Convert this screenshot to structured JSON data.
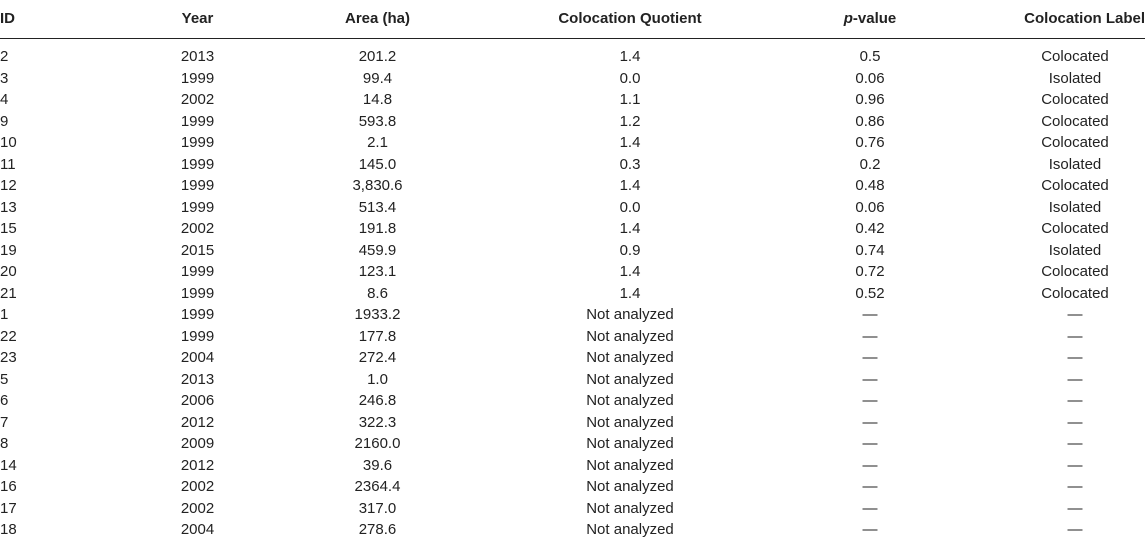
{
  "table": {
    "headers": {
      "id": "ID",
      "year": "Year",
      "area": "Area (ha)",
      "cq": "Colocation Quotient",
      "pvalue_italic": "p",
      "pvalue_rest": "-value",
      "label": "Colocation Label"
    },
    "rows": [
      {
        "id": "2",
        "year": "2013",
        "area": "201.2",
        "cq": "1.4",
        "p": "0.5",
        "label": "Colocated"
      },
      {
        "id": "3",
        "year": "1999",
        "area": "99.4",
        "cq": "0.0",
        "p": "0.06",
        "label": "Isolated"
      },
      {
        "id": "4",
        "year": "2002",
        "area": "14.8",
        "cq": "1.1",
        "p": "0.96",
        "label": "Colocated"
      },
      {
        "id": "9",
        "year": "1999",
        "area": "593.8",
        "cq": "1.2",
        "p": "0.86",
        "label": "Colocated"
      },
      {
        "id": "10",
        "year": "1999",
        "area": "2.1",
        "cq": "1.4",
        "p": "0.76",
        "label": "Colocated"
      },
      {
        "id": "11",
        "year": "1999",
        "area": "145.0",
        "cq": "0.3",
        "p": "0.2",
        "label": "Isolated"
      },
      {
        "id": "12",
        "year": "1999",
        "area": "3,830.6",
        "cq": "1.4",
        "p": "0.48",
        "label": "Colocated"
      },
      {
        "id": "13",
        "year": "1999",
        "area": "513.4",
        "cq": "0.0",
        "p": "0.06",
        "label": "Isolated"
      },
      {
        "id": "15",
        "year": "2002",
        "area": "191.8",
        "cq": "1.4",
        "p": "0.42",
        "label": "Colocated"
      },
      {
        "id": "19",
        "year": "2015",
        "area": "459.9",
        "cq": "0.9",
        "p": "0.74",
        "label": "Isolated"
      },
      {
        "id": "20",
        "year": "1999",
        "area": "123.1",
        "cq": "1.4",
        "p": "0.72",
        "label": "Colocated"
      },
      {
        "id": "21",
        "year": "1999",
        "area": "8.6",
        "cq": "1.4",
        "p": "0.52",
        "label": "Colocated"
      },
      {
        "id": "1",
        "year": "1999",
        "area": "1933.2",
        "cq": "Not analyzed",
        "p": "—",
        "label": "—"
      },
      {
        "id": "22",
        "year": "1999",
        "area": "177.8",
        "cq": "Not analyzed",
        "p": "—",
        "label": "—"
      },
      {
        "id": "23",
        "year": "2004",
        "area": "272.4",
        "cq": "Not analyzed",
        "p": "—",
        "label": "—"
      },
      {
        "id": "5",
        "year": "2013",
        "area": "1.0",
        "cq": "Not analyzed",
        "p": "—",
        "label": "—"
      },
      {
        "id": "6",
        "year": "2006",
        "area": "246.8",
        "cq": "Not analyzed",
        "p": "—",
        "label": "—"
      },
      {
        "id": "7",
        "year": "2012",
        "area": "322.3",
        "cq": "Not analyzed",
        "p": "—",
        "label": "—"
      },
      {
        "id": "8",
        "year": "2009",
        "area": "2160.0",
        "cq": "Not analyzed",
        "p": "—",
        "label": "—"
      },
      {
        "id": "14",
        "year": "2012",
        "area": "39.6",
        "cq": "Not analyzed",
        "p": "—",
        "label": "—"
      },
      {
        "id": "16",
        "year": "2002",
        "area": "2364.4",
        "cq": "Not analyzed",
        "p": "—",
        "label": "—"
      },
      {
        "id": "17",
        "year": "2002",
        "area": "317.0",
        "cq": "Not analyzed",
        "p": "—",
        "label": "—"
      },
      {
        "id": "18",
        "year": "2004",
        "area": "278.6",
        "cq": "Not analyzed",
        "p": "—",
        "label": "—"
      }
    ]
  }
}
